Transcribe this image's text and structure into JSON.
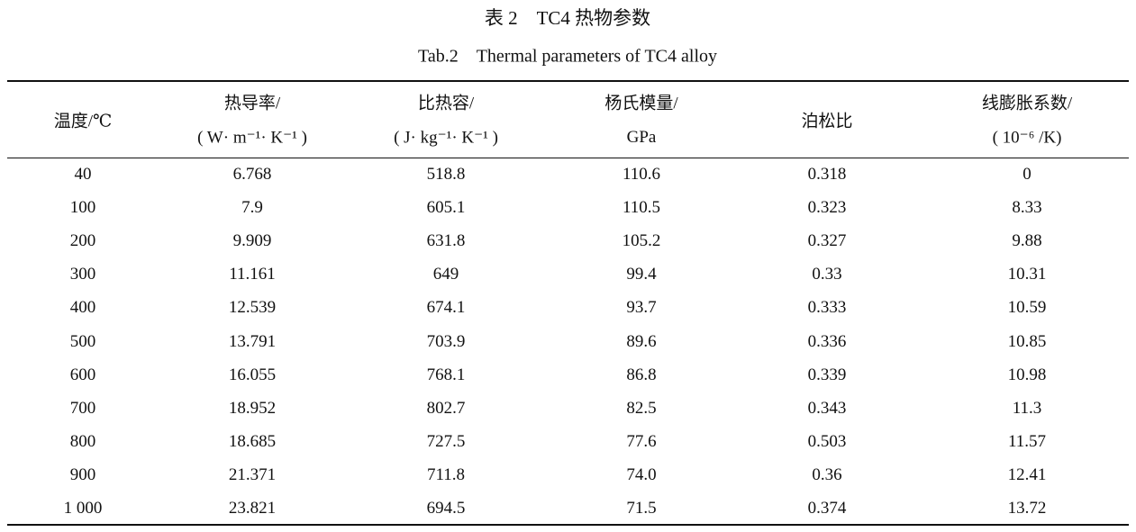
{
  "title": "表 2　TC4 热物参数",
  "subtitle": "Tab.2　Thermal parameters of TC4 alloy",
  "table": {
    "header": [
      [
        "温度/℃"
      ],
      [
        "热导率/",
        "( W· m⁻¹· K⁻¹ )"
      ],
      [
        "比热容/",
        "( J· kg⁻¹· K⁻¹ )"
      ],
      [
        "杨氏模量/",
        "GPa"
      ],
      [
        "泊松比"
      ],
      [
        "线膨胀系数/",
        "( 10⁻⁶ /K)"
      ]
    ],
    "rows": [
      [
        "40",
        "6.768",
        "518.8",
        "110.6",
        "0.318",
        "0"
      ],
      [
        "100",
        "7.9",
        "605.1",
        "110.5",
        "0.323",
        "8.33"
      ],
      [
        "200",
        "9.909",
        "631.8",
        "105.2",
        "0.327",
        "9.88"
      ],
      [
        "300",
        "11.161",
        "649",
        "99.4",
        "0.33",
        "10.31"
      ],
      [
        "400",
        "12.539",
        "674.1",
        "93.7",
        "0.333",
        "10.59"
      ],
      [
        "500",
        "13.791",
        "703.9",
        "89.6",
        "0.336",
        "10.85"
      ],
      [
        "600",
        "16.055",
        "768.1",
        "86.8",
        "0.339",
        "10.98"
      ],
      [
        "700",
        "18.952",
        "802.7",
        "82.5",
        "0.343",
        "11.3"
      ],
      [
        "800",
        "18.685",
        "727.5",
        "77.6",
        "0.503",
        "11.57"
      ],
      [
        "900",
        "21.371",
        "711.8",
        "74.0",
        "0.36",
        "12.41"
      ],
      [
        "1 000",
        "23.821",
        "694.5",
        "71.5",
        "0.374",
        "13.72"
      ]
    ]
  }
}
